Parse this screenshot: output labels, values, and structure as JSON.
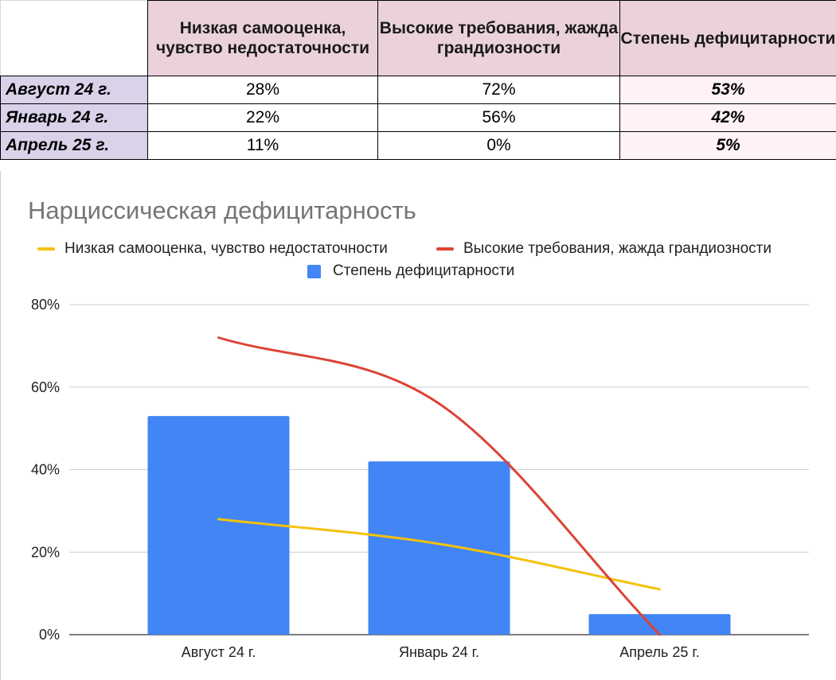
{
  "table": {
    "headers": [
      "",
      "Низкая самооценка, чувство недостаточности",
      "Высокие требования, жажда грандиозности",
      "Степень дефицитарности"
    ],
    "rows": [
      {
        "label": "Август 24 г.",
        "low": "28%",
        "high": "72%",
        "deficit": "53%"
      },
      {
        "label": "Январь 24 г.",
        "low": "22%",
        "high": "56%",
        "deficit": "42%"
      },
      {
        "label": "Апрель 25 г.",
        "low": "11%",
        "high": "0%",
        "deficit": "5%"
      }
    ]
  },
  "colors": {
    "header_bg": "#ead1dc",
    "row_label_bg": "#d9d2e9",
    "deficit_bg": "#fff2f7",
    "bar": "#4285f4",
    "line_low": "#f4c20d",
    "line_high": "#db4437",
    "grid": "#cccccc"
  },
  "chart_data": {
    "type": "bar",
    "title": "Нарциссическая дефицитарность",
    "categories": [
      "Август 24 г.",
      "Январь 24 г.",
      "Апрель 25 г."
    ],
    "series": [
      {
        "name": "Степень дефицитарности",
        "kind": "bar",
        "color": "#4285f4",
        "values": [
          53,
          42,
          5
        ]
      },
      {
        "name": "Низкая самооценка, чувство недостаточности",
        "kind": "line",
        "smooth": true,
        "color": "#f4c20d",
        "values": [
          28,
          22,
          11
        ]
      },
      {
        "name": "Высокие требования, жажда грандиозности",
        "kind": "line",
        "smooth": true,
        "color": "#db4437",
        "values": [
          72,
          56,
          0
        ]
      }
    ],
    "ylim": [
      0,
      80
    ],
    "yticks": [
      0,
      20,
      40,
      60,
      80
    ],
    "ytick_labels": [
      "0%",
      "20%",
      "40%",
      "60%",
      "80%"
    ],
    "xlabel": "",
    "ylabel": "",
    "grid": true,
    "legend": "top"
  }
}
